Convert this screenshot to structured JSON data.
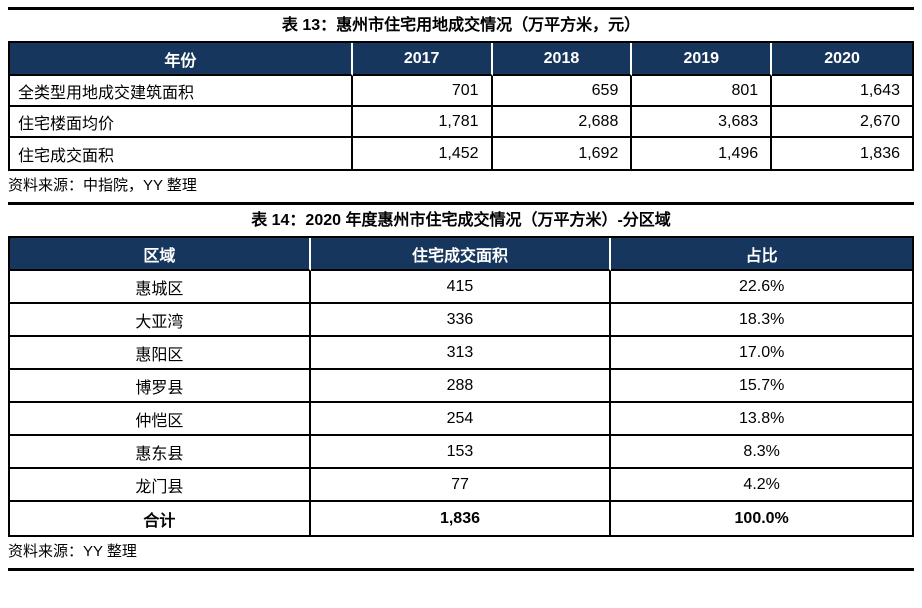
{
  "colors": {
    "header_bg": "#17365D",
    "header_text": "#ffffff",
    "border": "#000000",
    "rule": "#000000"
  },
  "table13": {
    "title": "表 13：惠州市住宅用地成交情况（万平方米，元）",
    "columns": [
      "年份",
      "2017",
      "2018",
      "2019",
      "2020"
    ],
    "rows": [
      {
        "label": "全类型用地成交建筑面积",
        "values": [
          "701",
          "659",
          "801",
          "1,643"
        ]
      },
      {
        "label": "住宅楼面均价",
        "values": [
          "1,781",
          "2,688",
          "3,683",
          "2,670"
        ]
      },
      {
        "label": "住宅成交面积",
        "values": [
          "1,452",
          "1,692",
          "1,496",
          "1,836"
        ]
      }
    ],
    "source": "资料来源：中指院，YY 整理"
  },
  "table14": {
    "title": "表 14：2020 年度惠州市住宅成交情况（万平方米）-分区域",
    "columns": [
      "区域",
      "住宅成交面积",
      "占比"
    ],
    "rows": [
      {
        "region": "惠城区",
        "area": "415",
        "share": "22.6%"
      },
      {
        "region": "大亚湾",
        "area": "336",
        "share": "18.3%"
      },
      {
        "region": "惠阳区",
        "area": "313",
        "share": "17.0%"
      },
      {
        "region": "博罗县",
        "area": "288",
        "share": "15.7%"
      },
      {
        "region": "仲恺区",
        "area": "254",
        "share": "13.8%"
      },
      {
        "region": "惠东县",
        "area": "153",
        "share": "8.3%"
      },
      {
        "region": "龙门县",
        "area": "77",
        "share": "4.2%"
      }
    ],
    "total_row": {
      "region": "合计",
      "area": "1,836",
      "share": "100.0%"
    },
    "source": "资料来源：YY 整理"
  }
}
